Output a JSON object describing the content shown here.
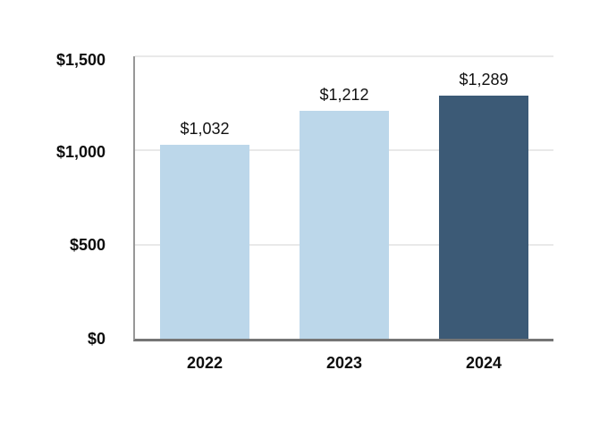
{
  "chart_data": {
    "type": "bar",
    "categories": [
      "2022",
      "2023",
      "2024"
    ],
    "values": [
      1032,
      1212,
      1289
    ],
    "value_labels": [
      "$1,032",
      "$1,212",
      "$1,289"
    ],
    "bar_colors": [
      "#bcd7ea",
      "#bcd7ea",
      "#3c5a76"
    ],
    "ylim": [
      0,
      1500
    ],
    "ytick_interval": 500,
    "yticks": [
      "$0",
      "$500",
      "$1,000",
      "$1,500"
    ],
    "grid": true,
    "legend": "none"
  },
  "colors": {
    "light_bar": "#bcd7ea",
    "dark_bar": "#3c5a76",
    "gridline": "#e9e9e9",
    "y_axis_line": "#979797",
    "x_axis_line": "#757575",
    "text": "#0d0d0d",
    "background": "#ffffff"
  }
}
